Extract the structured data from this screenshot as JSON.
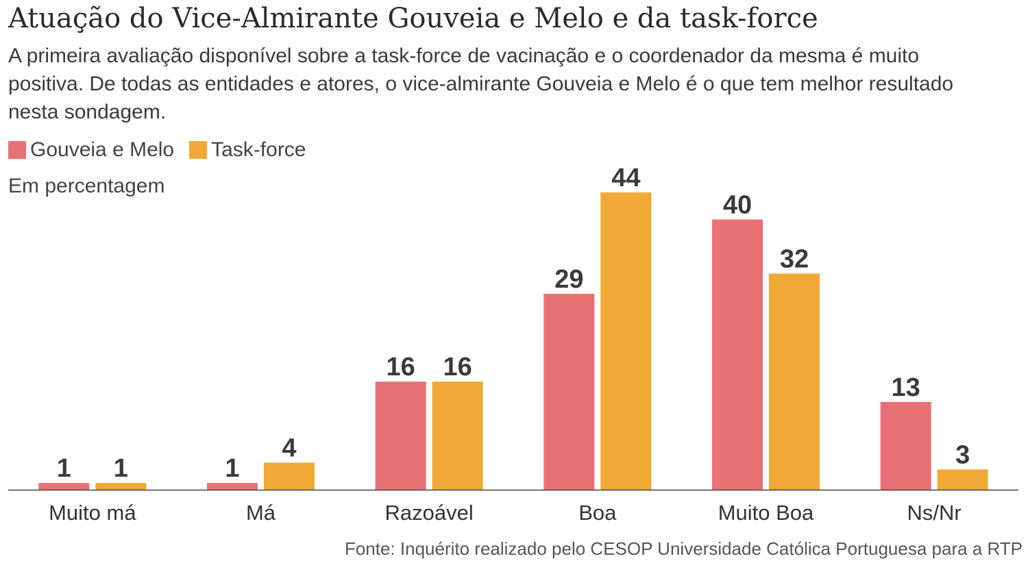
{
  "header": {
    "title": "Atuação do Vice-Almirante Gouveia e Melo e da task-force",
    "subtitle": "A primeira avaliação disponível sobre a task-force de vacinação e o coordenador da mesma é muito positiva. De todas as entidades e atores, o vice-almirante Gouveia e Melo é o que tem melhor resultado nesta sondagem."
  },
  "legend": [
    {
      "label": "Gouveia e Melo",
      "color": "#e87176"
    },
    {
      "label": "Task-force",
      "color": "#f0a934"
    }
  ],
  "unit_label": "Em percentagem",
  "source": "Fonte: Inquérito realizado pelo CESOP Universidade Católica Portuguesa para a RTP",
  "chart_data": {
    "type": "bar",
    "title": "Atuação do Vice-Almirante Gouveia e Melo e da task-force",
    "ylabel": "Em percentagem",
    "xlabel": "",
    "categories": [
      "Muito má",
      "Má",
      "Razoável",
      "Boa",
      "Muito Boa",
      "Ns/Nr"
    ],
    "series": [
      {
        "name": "Gouveia e Melo",
        "color": "#e87176",
        "values": [
          1,
          1,
          16,
          29,
          40,
          13
        ]
      },
      {
        "name": "Task-force",
        "color": "#f0a934",
        "values": [
          1,
          4,
          16,
          44,
          32,
          3
        ]
      }
    ],
    "ylim": [
      0,
      44
    ],
    "grid": false,
    "legend_position": "top-left"
  }
}
